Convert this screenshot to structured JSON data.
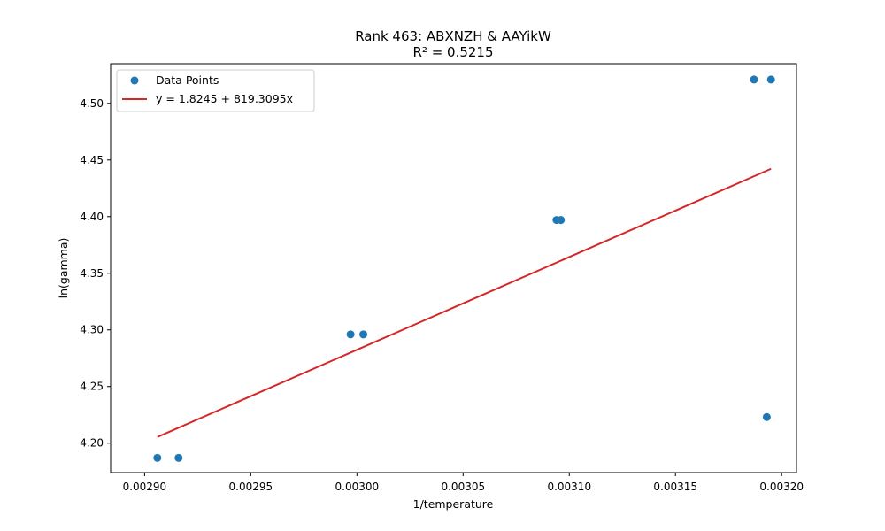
{
  "chart_data": {
    "type": "scatter",
    "title": "Rank 463: ABXNZH & AAYikW",
    "subtitle": "R² = 0.5215",
    "xlabel": "1/temperature",
    "ylabel": "ln(gamma)",
    "xlim": [
      0.002884,
      0.003207
    ],
    "ylim": [
      4.174,
      4.535
    ],
    "x_ticks": [
      0.0029,
      0.00295,
      0.003,
      0.00305,
      0.0031,
      0.00315,
      0.0032
    ],
    "x_tick_labels": [
      "0.00290",
      "0.00295",
      "0.00300",
      "0.00305",
      "0.00310",
      "0.00315",
      "0.00320"
    ],
    "y_ticks": [
      4.2,
      4.25,
      4.3,
      4.35,
      4.4,
      4.45,
      4.5
    ],
    "y_tick_labels": [
      "4.20",
      "4.25",
      "4.30",
      "4.35",
      "4.40",
      "4.45",
      "4.50"
    ],
    "grid": false,
    "legend_position": "top-left",
    "series": [
      {
        "name": "Data Points",
        "kind": "scatter",
        "color": "#1f77b4",
        "points": [
          {
            "x": 0.002906,
            "y": 4.187
          },
          {
            "x": 0.002916,
            "y": 4.187
          },
          {
            "x": 0.002997,
            "y": 4.296
          },
          {
            "x": 0.003003,
            "y": 4.296
          },
          {
            "x": 0.003094,
            "y": 4.397
          },
          {
            "x": 0.003096,
            "y": 4.397
          },
          {
            "x": 0.003187,
            "y": 4.521
          },
          {
            "x": 0.003195,
            "y": 4.521
          },
          {
            "x": 0.003193,
            "y": 4.223
          }
        ]
      },
      {
        "name": "y = 1.8245 + 819.3095x",
        "kind": "line",
        "color": "#d62728",
        "points": [
          {
            "x": 0.002906,
            "y": 4.2054
          },
          {
            "x": 0.003195,
            "y": 4.4422
          }
        ]
      }
    ]
  }
}
